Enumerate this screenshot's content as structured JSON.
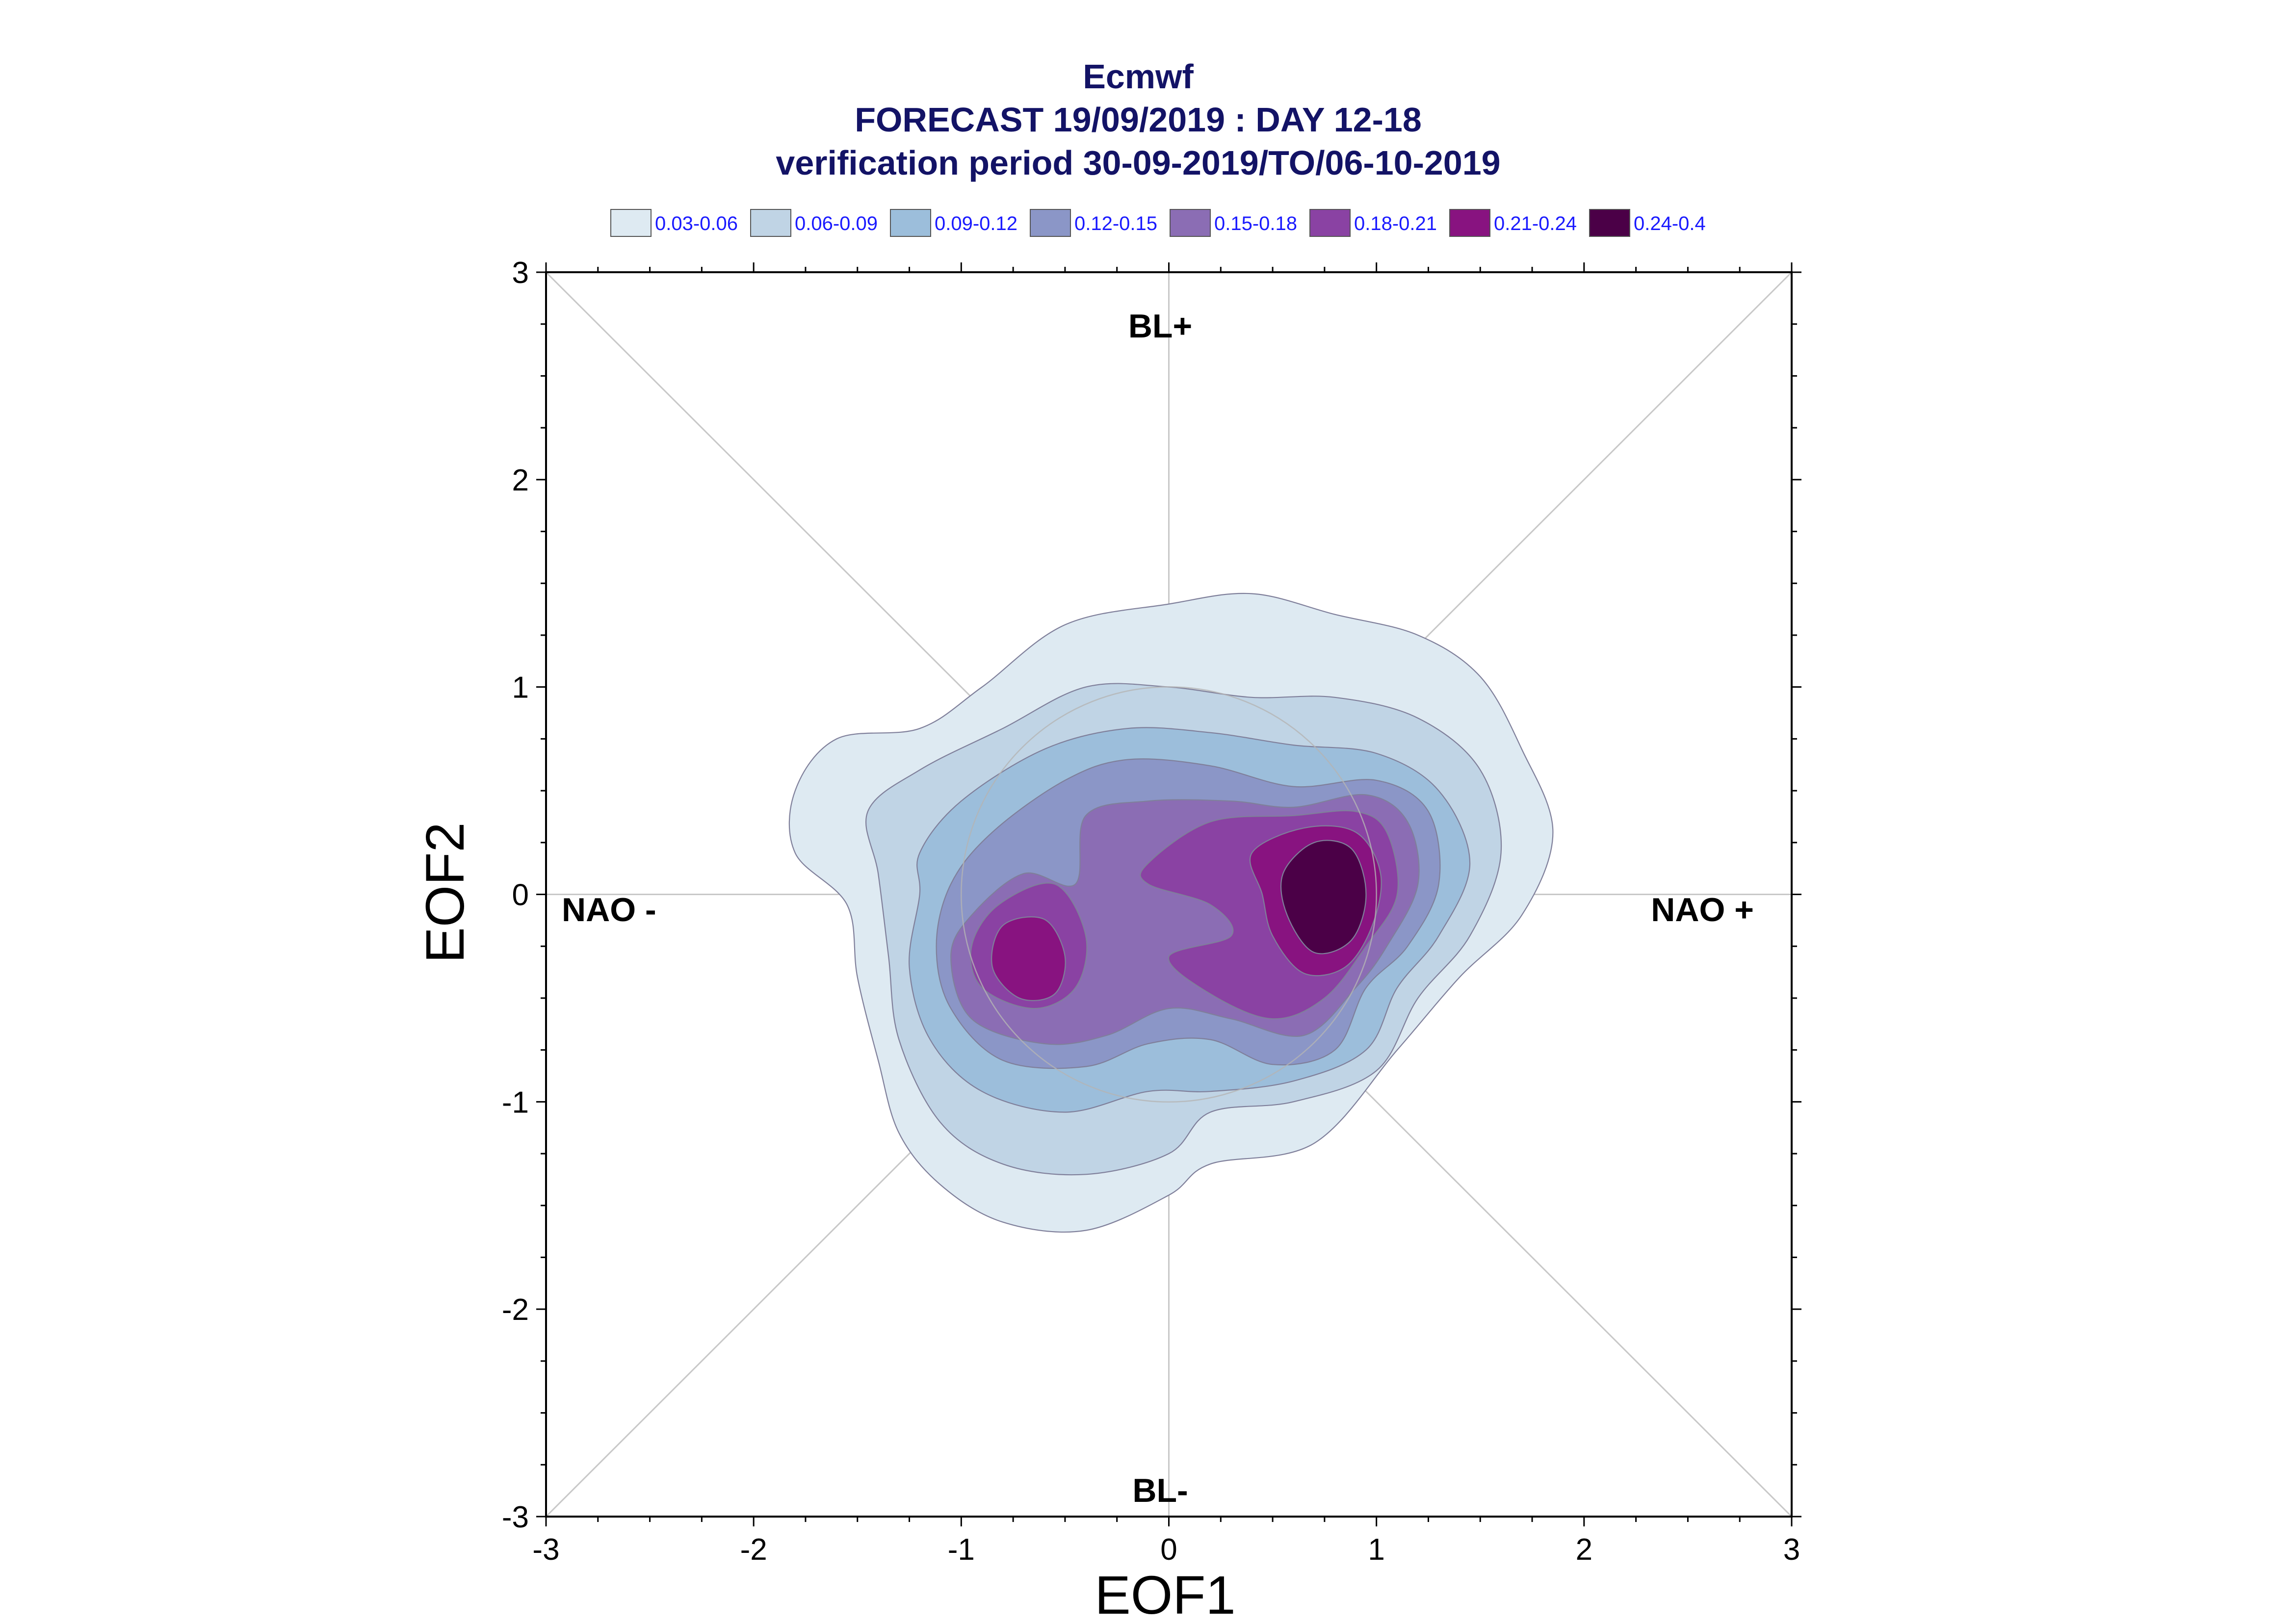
{
  "chart_data": {
    "type": "contour",
    "title_lines": [
      "Ecmwf",
      "FORECAST 19/09/2019 : DAY 12-18",
      "verification period 30-09-2019/TO/06-10-2019"
    ],
    "xlabel": "EOF1",
    "ylabel": "EOF2",
    "xlim": [
      -3,
      3
    ],
    "ylim": [
      -3,
      3
    ],
    "x_ticks": [
      "-3",
      "-2",
      "-1",
      "0",
      "1",
      "2",
      "3"
    ],
    "y_ticks": [
      "-3",
      "-2",
      "-1",
      "0",
      "1",
      "2",
      "3"
    ],
    "region_labels": {
      "top": "BL+",
      "bottom": "BL-",
      "left": "NAO -",
      "right": "NAO +"
    },
    "legend": [
      {
        "label": "0.03-0.06",
        "color": "#deeaf2"
      },
      {
        "label": "0.06-0.09",
        "color": "#c0d4e5"
      },
      {
        "label": "0.09-0.12",
        "color": "#9cbedb"
      },
      {
        "label": "0.12-0.15",
        "color": "#8b96c7"
      },
      {
        "label": "0.15-0.18",
        "color": "#8b6db4"
      },
      {
        "label": "0.18-0.21",
        "color": "#8a42a3"
      },
      {
        "label": "0.21-0.24",
        "color": "#881380"
      },
      {
        "label": "0.24-0.4",
        "color": "#4b0047"
      }
    ],
    "contours": [
      {
        "level": "0.03-0.06",
        "points": [
          [
            -1.8,
            0.5
          ],
          [
            -1.6,
            0.75
          ],
          [
            -1.2,
            0.8
          ],
          [
            -0.9,
            1.0
          ],
          [
            -0.5,
            1.3
          ],
          [
            0.0,
            1.4
          ],
          [
            0.4,
            1.45
          ],
          [
            0.8,
            1.35
          ],
          [
            1.2,
            1.25
          ],
          [
            1.5,
            1.05
          ],
          [
            1.7,
            0.7
          ],
          [
            1.85,
            0.3
          ],
          [
            1.7,
            -0.1
          ],
          [
            1.4,
            -0.4
          ],
          [
            1.1,
            -0.75
          ],
          [
            0.7,
            -1.2
          ],
          [
            0.2,
            -1.3
          ],
          [
            0.0,
            -1.45
          ],
          [
            -0.4,
            -1.62
          ],
          [
            -0.8,
            -1.58
          ],
          [
            -1.1,
            -1.4
          ],
          [
            -1.3,
            -1.15
          ],
          [
            -1.4,
            -0.8
          ],
          [
            -1.5,
            -0.4
          ],
          [
            -1.55,
            -0.05
          ],
          [
            -1.8,
            0.2
          ]
        ]
      },
      {
        "level": "0.06-0.09",
        "points": [
          [
            -1.45,
            0.4
          ],
          [
            -1.2,
            0.6
          ],
          [
            -0.8,
            0.8
          ],
          [
            -0.4,
            1.0
          ],
          [
            0.0,
            1.0
          ],
          [
            0.4,
            0.95
          ],
          [
            0.8,
            0.95
          ],
          [
            1.2,
            0.85
          ],
          [
            1.5,
            0.6
          ],
          [
            1.6,
            0.2
          ],
          [
            1.45,
            -0.2
          ],
          [
            1.2,
            -0.5
          ],
          [
            1.0,
            -0.85
          ],
          [
            0.6,
            -1.0
          ],
          [
            0.2,
            -1.05
          ],
          [
            0.0,
            -1.25
          ],
          [
            -0.4,
            -1.35
          ],
          [
            -0.8,
            -1.3
          ],
          [
            -1.1,
            -1.1
          ],
          [
            -1.3,
            -0.7
          ],
          [
            -1.35,
            -0.3
          ],
          [
            -1.4,
            0.1
          ]
        ]
      },
      {
        "level": "0.09-0.12",
        "points": [
          [
            -1.2,
            0.2
          ],
          [
            -1.0,
            0.45
          ],
          [
            -0.6,
            0.7
          ],
          [
            -0.2,
            0.8
          ],
          [
            0.2,
            0.78
          ],
          [
            0.6,
            0.72
          ],
          [
            1.0,
            0.68
          ],
          [
            1.3,
            0.5
          ],
          [
            1.45,
            0.15
          ],
          [
            1.3,
            -0.2
          ],
          [
            1.1,
            -0.45
          ],
          [
            0.95,
            -0.75
          ],
          [
            0.6,
            -0.9
          ],
          [
            0.2,
            -0.95
          ],
          [
            -0.1,
            -0.95
          ],
          [
            -0.5,
            -1.05
          ],
          [
            -0.9,
            -0.95
          ],
          [
            -1.15,
            -0.7
          ],
          [
            -1.25,
            -0.35
          ],
          [
            -1.2,
            0.0
          ]
        ]
      },
      {
        "level": "0.12-0.15",
        "points": [
          [
            -1.05,
            0.05
          ],
          [
            -0.85,
            0.3
          ],
          [
            -0.5,
            0.55
          ],
          [
            -0.2,
            0.65
          ],
          [
            0.2,
            0.62
          ],
          [
            0.6,
            0.52
          ],
          [
            1.0,
            0.55
          ],
          [
            1.25,
            0.4
          ],
          [
            1.3,
            0.05
          ],
          [
            1.15,
            -0.25
          ],
          [
            0.95,
            -0.45
          ],
          [
            0.8,
            -0.75
          ],
          [
            0.5,
            -0.82
          ],
          [
            0.2,
            -0.7
          ],
          [
            -0.1,
            -0.72
          ],
          [
            -0.4,
            -0.83
          ],
          [
            -0.8,
            -0.8
          ],
          [
            -1.05,
            -0.55
          ],
          [
            -1.12,
            -0.25
          ]
        ]
      },
      {
        "level": "0.15-0.18",
        "points": [
          [
            -0.95,
            -0.1
          ],
          [
            -0.7,
            0.1
          ],
          [
            -0.45,
            0.05
          ],
          [
            -0.4,
            0.38
          ],
          [
            -0.1,
            0.45
          ],
          [
            0.3,
            0.45
          ],
          [
            0.6,
            0.42
          ],
          [
            0.95,
            0.48
          ],
          [
            1.15,
            0.35
          ],
          [
            1.2,
            0.05
          ],
          [
            1.05,
            -0.25
          ],
          [
            0.9,
            -0.45
          ],
          [
            0.65,
            -0.68
          ],
          [
            0.3,
            -0.6
          ],
          [
            0.0,
            -0.55
          ],
          [
            -0.3,
            -0.68
          ],
          [
            -0.6,
            -0.72
          ],
          [
            -0.95,
            -0.6
          ],
          [
            -1.05,
            -0.3
          ]
        ]
      },
      {
        "level": "0.18-0.21",
        "points": [
          [
            -0.1,
            0.15
          ],
          [
            0.2,
            0.35
          ],
          [
            0.6,
            0.38
          ],
          [
            0.9,
            0.4
          ],
          [
            1.05,
            0.3
          ],
          [
            1.1,
            0.0
          ],
          [
            0.95,
            -0.25
          ],
          [
            0.75,
            -0.5
          ],
          [
            0.5,
            -0.6
          ],
          [
            0.2,
            -0.48
          ],
          [
            0.0,
            -0.3
          ],
          [
            0.3,
            -0.2
          ],
          [
            0.2,
            -0.05
          ],
          [
            -0.1,
            0.05
          ]
        ]
      },
      {
        "level": "0.18-0.21",
        "points": [
          [
            -0.82,
            -0.05
          ],
          [
            -0.55,
            0.05
          ],
          [
            -0.4,
            -0.2
          ],
          [
            -0.45,
            -0.45
          ],
          [
            -0.65,
            -0.55
          ],
          [
            -0.9,
            -0.45
          ],
          [
            -0.95,
            -0.25
          ]
        ]
      },
      {
        "level": "0.21-0.24",
        "points": [
          [
            0.4,
            0.2
          ],
          [
            0.65,
            0.32
          ],
          [
            0.9,
            0.3
          ],
          [
            1.02,
            0.1
          ],
          [
            0.98,
            -0.15
          ],
          [
            0.85,
            -0.35
          ],
          [
            0.65,
            -0.38
          ],
          [
            0.5,
            -0.2
          ],
          [
            0.45,
            0.0
          ]
        ]
      },
      {
        "level": "0.21-0.24",
        "points": [
          [
            -0.8,
            -0.15
          ],
          [
            -0.6,
            -0.12
          ],
          [
            -0.5,
            -0.3
          ],
          [
            -0.55,
            -0.48
          ],
          [
            -0.72,
            -0.5
          ],
          [
            -0.85,
            -0.35
          ]
        ]
      },
      {
        "level": "0.24-0.4",
        "points": [
          [
            0.55,
            0.1
          ],
          [
            0.7,
            0.25
          ],
          [
            0.88,
            0.22
          ],
          [
            0.95,
            0.0
          ],
          [
            0.88,
            -0.22
          ],
          [
            0.7,
            -0.28
          ],
          [
            0.57,
            -0.1
          ]
        ]
      }
    ]
  }
}
